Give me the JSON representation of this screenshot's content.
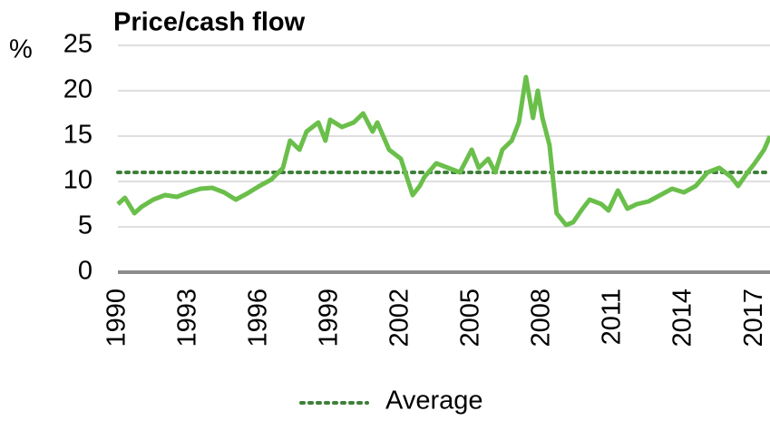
{
  "chart_data": {
    "type": "line",
    "title": "Price/cash flow",
    "y_unit": "%",
    "x": [
      1990.0,
      1990.3,
      1990.7,
      1991.0,
      1991.5,
      1992.0,
      1992.5,
      1993.0,
      1993.5,
      1994.0,
      1994.5,
      1995.0,
      1995.5,
      1996.0,
      1996.5,
      1997.0,
      1997.3,
      1997.7,
      1998.0,
      1998.5,
      1998.8,
      1999.0,
      1999.5,
      2000.0,
      2000.4,
      2000.8,
      2001.0,
      2001.5,
      2002.0,
      2002.5,
      2002.8,
      2003.0,
      2003.5,
      2004.0,
      2004.5,
      2005.0,
      2005.3,
      2005.7,
      2006.0,
      2006.3,
      2006.7,
      2007.0,
      2007.3,
      2007.6,
      2007.8,
      2008.0,
      2008.3,
      2008.6,
      2009.0,
      2009.3,
      2009.7,
      2010.0,
      2010.5,
      2010.8,
      2011.2,
      2011.6,
      2012.0,
      2012.5,
      2013.0,
      2013.5,
      2014.0,
      2014.5,
      2015.0,
      2015.5,
      2016.0,
      2016.3,
      2016.7,
      2017.0,
      2017.4,
      2017.65
    ],
    "series": [
      {
        "color": "#6abf4b",
        "values": [
          7.5,
          8.2,
          6.5,
          7.2,
          8.0,
          8.5,
          8.3,
          8.8,
          9.2,
          9.3,
          8.8,
          8.0,
          8.7,
          9.5,
          10.2,
          11.5,
          14.5,
          13.5,
          15.5,
          16.5,
          14.5,
          16.8,
          16.0,
          16.5,
          17.5,
          15.5,
          16.5,
          13.5,
          12.5,
          8.5,
          9.5,
          10.5,
          12.0,
          11.5,
          11.0,
          13.5,
          11.5,
          12.5,
          11.0,
          13.5,
          14.5,
          16.5,
          21.5,
          17.0,
          20.0,
          17.0,
          14.0,
          6.5,
          5.2,
          5.5,
          7.0,
          8.0,
          7.5,
          6.8,
          9.0,
          7.0,
          7.5,
          7.8,
          8.5,
          9.2,
          8.8,
          9.5,
          11.0,
          11.5,
          10.5,
          9.5,
          11.0,
          12.0,
          13.5,
          15.0
        ]
      }
    ],
    "average": {
      "name": "Average",
      "value": 11,
      "color": "#3f7f3a"
    },
    "xlim": [
      1990,
      2017.65
    ],
    "xticks": [
      1990,
      1993,
      1996,
      1999,
      2002,
      2005,
      2008,
      2011,
      2014,
      2017
    ],
    "ylim": [
      0,
      25
    ],
    "yticks": [
      0,
      5,
      10,
      15,
      20,
      25
    ],
    "grid": true
  }
}
